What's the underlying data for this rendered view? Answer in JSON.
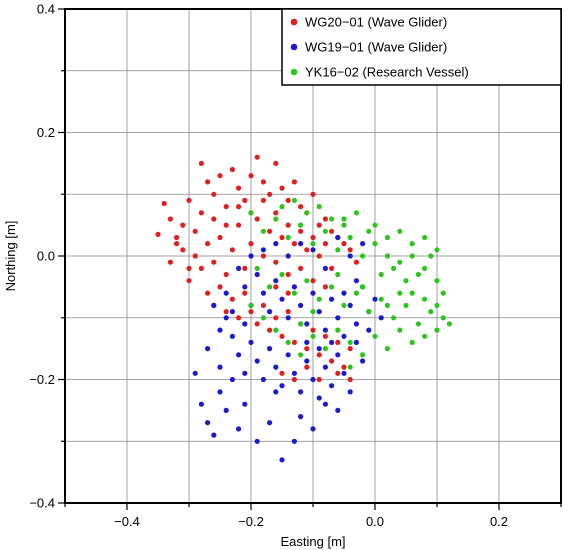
{
  "chart_data": {
    "type": "scatter",
    "title": "",
    "xlabel": "Easting [m]",
    "ylabel": "Northing [m]",
    "xlim": [
      -0.5,
      0.3
    ],
    "ylim": [
      -0.4,
      0.4
    ],
    "x_ticks": [
      -0.4,
      -0.2,
      0.0,
      0.2
    ],
    "y_ticks": [
      -0.4,
      -0.2,
      0.0,
      0.2,
      0.4
    ],
    "x_tick_labels": [
      "−0.4",
      "−0.2",
      "0.0",
      "0.2"
    ],
    "y_tick_labels": [
      "−0.4",
      "−0.2",
      "0.0",
      "0.2",
      "0.4"
    ],
    "grid": true,
    "legend_position": "top-right",
    "series": [
      {
        "name": "WG20−01 (Wave Glider)",
        "color": "#e0201f",
        "points": [
          [
            -0.34,
            0.085
          ],
          [
            -0.33,
            0.06
          ],
          [
            -0.35,
            0.035
          ],
          [
            -0.32,
            0.03
          ],
          [
            -0.3,
            0.09
          ],
          [
            -0.31,
            0.05
          ],
          [
            -0.28,
            0.15
          ],
          [
            -0.27,
            0.12
          ],
          [
            -0.26,
            0.1
          ],
          [
            -0.25,
            0.13
          ],
          [
            -0.24,
            0.08
          ],
          [
            -0.23,
            0.14
          ],
          [
            -0.22,
            0.11
          ],
          [
            -0.21,
            0.09
          ],
          [
            -0.2,
            0.13
          ],
          [
            -0.19,
            0.16
          ],
          [
            -0.18,
            0.12
          ],
          [
            -0.17,
            0.1
          ],
          [
            -0.16,
            0.15
          ],
          [
            -0.15,
            0.11
          ],
          [
            -0.14,
            0.09
          ],
          [
            -0.13,
            0.12
          ],
          [
            -0.12,
            0.08
          ],
          [
            -0.11,
            0.07
          ],
          [
            -0.1,
            0.1
          ],
          [
            -0.09,
            0.05
          ],
          [
            -0.08,
            0.06
          ],
          [
            -0.07,
            0.04
          ],
          [
            -0.06,
            0.03
          ],
          [
            -0.05,
            0.02
          ],
          [
            -0.04,
            0.01
          ],
          [
            -0.03,
            -0.01
          ],
          [
            -0.29,
            0.0
          ],
          [
            -0.28,
            -0.02
          ],
          [
            -0.3,
            -0.04
          ],
          [
            -0.27,
            0.02
          ],
          [
            -0.26,
            -0.01
          ],
          [
            -0.25,
            0.03
          ],
          [
            -0.24,
            -0.03
          ],
          [
            -0.23,
            0.01
          ],
          [
            -0.22,
            0.05
          ],
          [
            -0.21,
            -0.02
          ],
          [
            -0.2,
            0.02
          ],
          [
            -0.19,
            0.06
          ],
          [
            -0.18,
            0.0
          ],
          [
            -0.17,
            0.04
          ],
          [
            -0.16,
            -0.01
          ],
          [
            -0.15,
            0.03
          ],
          [
            -0.14,
            -0.03
          ],
          [
            -0.13,
            0.02
          ],
          [
            -0.12,
            -0.02
          ],
          [
            -0.11,
            0.01
          ],
          [
            -0.1,
            -0.04
          ],
          [
            -0.09,
            0.0
          ],
          [
            -0.08,
            -0.05
          ],
          [
            -0.07,
            -0.02
          ],
          [
            -0.27,
            -0.06
          ],
          [
            -0.26,
            -0.08
          ],
          [
            -0.25,
            -0.05
          ],
          [
            -0.24,
            -0.09
          ],
          [
            -0.23,
            -0.07
          ],
          [
            -0.22,
            -0.1
          ],
          [
            -0.21,
            -0.06
          ],
          [
            -0.2,
            -0.09
          ],
          [
            -0.19,
            -0.11
          ],
          [
            -0.18,
            -0.08
          ],
          [
            -0.17,
            -0.12
          ],
          [
            -0.16,
            -0.1
          ],
          [
            -0.15,
            -0.13
          ],
          [
            -0.14,
            -0.09
          ],
          [
            -0.13,
            -0.14
          ],
          [
            -0.12,
            -0.11
          ],
          [
            -0.11,
            -0.15
          ],
          [
            -0.1,
            -0.12
          ],
          [
            -0.09,
            -0.16
          ],
          [
            -0.08,
            -0.13
          ],
          [
            -0.07,
            -0.17
          ],
          [
            -0.06,
            -0.14
          ],
          [
            -0.05,
            -0.18
          ],
          [
            -0.04,
            -0.15
          ],
          [
            -0.15,
            -0.19
          ],
          [
            -0.13,
            -0.2
          ],
          [
            -0.11,
            -0.18
          ],
          [
            -0.09,
            -0.2
          ],
          [
            -0.06,
            -0.19
          ],
          [
            -0.04,
            -0.2
          ],
          [
            -0.16,
            -0.05
          ],
          [
            -0.14,
            -0.06
          ],
          [
            -0.28,
            0.07
          ],
          [
            -0.32,
            0.02
          ],
          [
            -0.33,
            -0.01
          ],
          [
            -0.31,
            0.01
          ],
          [
            -0.29,
            0.04
          ],
          [
            -0.3,
            -0.02
          ],
          [
            -0.26,
            0.06
          ],
          [
            -0.24,
            0.05
          ],
          [
            -0.22,
            0.08
          ],
          [
            -0.2,
            0.07
          ],
          [
            -0.18,
            0.09
          ],
          [
            -0.16,
            0.07
          ],
          [
            -0.14,
            0.05
          ],
          [
            -0.12,
            0.04
          ],
          [
            -0.1,
            0.03
          ],
          [
            -0.08,
            0.02
          ]
        ]
      },
      {
        "name": "WG19−01 (Wave Glider)",
        "color": "#1a1ad0",
        "points": [
          [
            -0.22,
            -0.02
          ],
          [
            -0.21,
            -0.05
          ],
          [
            -0.2,
            -0.08
          ],
          [
            -0.19,
            -0.03
          ],
          [
            -0.18,
            -0.06
          ],
          [
            -0.17,
            -0.09
          ],
          [
            -0.16,
            -0.04
          ],
          [
            -0.15,
            -0.07
          ],
          [
            -0.14,
            -0.1
          ],
          [
            -0.13,
            -0.05
          ],
          [
            -0.12,
            -0.08
          ],
          [
            -0.11,
            -0.11
          ],
          [
            -0.1,
            -0.06
          ],
          [
            -0.09,
            -0.09
          ],
          [
            -0.08,
            -0.12
          ],
          [
            -0.07,
            -0.07
          ],
          [
            -0.06,
            -0.1
          ],
          [
            -0.05,
            -0.13
          ],
          [
            -0.04,
            -0.08
          ],
          [
            -0.03,
            -0.11
          ],
          [
            -0.02,
            -0.05
          ],
          [
            -0.01,
            -0.09
          ],
          [
            0.0,
            -0.07
          ],
          [
            0.01,
            -0.1
          ],
          [
            -0.24,
            -0.1
          ],
          [
            -0.23,
            -0.13
          ],
          [
            -0.22,
            -0.16
          ],
          [
            -0.21,
            -0.19
          ],
          [
            -0.2,
            -0.14
          ],
          [
            -0.19,
            -0.17
          ],
          [
            -0.18,
            -0.2
          ],
          [
            -0.17,
            -0.15
          ],
          [
            -0.16,
            -0.18
          ],
          [
            -0.15,
            -0.21
          ],
          [
            -0.14,
            -0.16
          ],
          [
            -0.13,
            -0.19
          ],
          [
            -0.12,
            -0.22
          ],
          [
            -0.11,
            -0.17
          ],
          [
            -0.1,
            -0.2
          ],
          [
            -0.09,
            -0.23
          ],
          [
            -0.08,
            -0.18
          ],
          [
            -0.07,
            -0.21
          ],
          [
            -0.06,
            -0.16
          ],
          [
            -0.05,
            -0.19
          ],
          [
            -0.04,
            -0.22
          ],
          [
            -0.03,
            -0.14
          ],
          [
            -0.02,
            -0.17
          ],
          [
            -0.01,
            -0.12
          ],
          [
            -0.28,
            -0.24
          ],
          [
            -0.27,
            -0.27
          ],
          [
            -0.26,
            -0.29
          ],
          [
            -0.25,
            -0.22
          ],
          [
            -0.24,
            -0.25
          ],
          [
            -0.22,
            -0.28
          ],
          [
            -0.21,
            -0.24
          ],
          [
            -0.19,
            -0.3
          ],
          [
            -0.17,
            -0.27
          ],
          [
            -0.16,
            -0.22
          ],
          [
            -0.15,
            -0.33
          ],
          [
            -0.13,
            -0.3
          ],
          [
            -0.12,
            -0.26
          ],
          [
            -0.1,
            -0.28
          ],
          [
            -0.08,
            -0.24
          ],
          [
            -0.06,
            -0.25
          ],
          [
            -0.26,
            -0.08
          ],
          [
            -0.25,
            -0.12
          ],
          [
            -0.27,
            -0.15
          ],
          [
            -0.24,
            -0.06
          ],
          [
            -0.23,
            -0.09
          ],
          [
            -0.21,
            -0.11
          ],
          [
            -0.2,
            0.0
          ],
          [
            -0.18,
            0.01
          ],
          [
            -0.16,
            0.02
          ],
          [
            -0.14,
            0.0
          ],
          [
            -0.12,
            0.02
          ],
          [
            -0.1,
            0.01
          ],
          [
            -0.08,
            -0.02
          ],
          [
            -0.06,
            0.03
          ],
          [
            -0.04,
            0.0
          ],
          [
            -0.02,
            0.02
          ],
          [
            -0.29,
            -0.19
          ],
          [
            -0.25,
            -0.18
          ],
          [
            -0.23,
            -0.2
          ],
          [
            -0.11,
            -0.14
          ],
          [
            -0.09,
            -0.15
          ],
          [
            -0.07,
            -0.14
          ],
          [
            -0.05,
            -0.06
          ],
          [
            -0.03,
            -0.04
          ]
        ]
      },
      {
        "name": "YK16−02 (Research Vessel)",
        "color": "#2ec41e",
        "points": [
          [
            -0.2,
            0.07
          ],
          [
            -0.18,
            0.04
          ],
          [
            -0.16,
            0.06
          ],
          [
            -0.14,
            0.03
          ],
          [
            -0.12,
            0.05
          ],
          [
            -0.1,
            0.02
          ],
          [
            -0.08,
            0.04
          ],
          [
            -0.06,
            0.01
          ],
          [
            -0.04,
            0.03
          ],
          [
            -0.02,
            0.0
          ],
          [
            0.0,
            0.02
          ],
          [
            0.02,
            0.0
          ],
          [
            0.04,
            -0.01
          ],
          [
            0.06,
            0.0
          ],
          [
            0.08,
            -0.02
          ],
          [
            0.09,
            0.0
          ],
          [
            -0.19,
            -0.02
          ],
          [
            -0.17,
            -0.05
          ],
          [
            -0.15,
            -0.03
          ],
          [
            -0.13,
            -0.06
          ],
          [
            -0.11,
            -0.04
          ],
          [
            -0.09,
            -0.07
          ],
          [
            -0.07,
            -0.05
          ],
          [
            -0.05,
            -0.08
          ],
          [
            -0.03,
            -0.06
          ],
          [
            -0.01,
            -0.09
          ],
          [
            0.01,
            -0.07
          ],
          [
            0.03,
            -0.1
          ],
          [
            0.05,
            -0.08
          ],
          [
            0.07,
            -0.11
          ],
          [
            0.09,
            -0.09
          ],
          [
            0.11,
            -0.1
          ],
          [
            -0.16,
            -0.12
          ],
          [
            -0.14,
            -0.14
          ],
          [
            -0.12,
            -0.11
          ],
          [
            -0.1,
            -0.13
          ],
          [
            -0.08,
            -0.15
          ],
          [
            -0.06,
            -0.12
          ],
          [
            -0.04,
            -0.14
          ],
          [
            -0.02,
            -0.16
          ],
          [
            0.0,
            -0.13
          ],
          [
            0.02,
            -0.15
          ],
          [
            0.04,
            -0.12
          ],
          [
            0.06,
            -0.14
          ],
          [
            0.08,
            -0.13
          ],
          [
            0.1,
            -0.12
          ],
          [
            0.12,
            -0.11
          ],
          [
            0.05,
            -0.04
          ],
          [
            0.0,
            0.05
          ],
          [
            0.02,
            0.03
          ],
          [
            0.04,
            0.04
          ],
          [
            0.06,
            0.02
          ],
          [
            0.08,
            0.03
          ],
          [
            0.1,
            0.01
          ],
          [
            0.07,
            -0.03
          ],
          [
            0.03,
            -0.02
          ],
          [
            -0.05,
            0.06
          ],
          [
            -0.03,
            0.07
          ],
          [
            -0.01,
            0.04
          ],
          [
            0.01,
            -0.03
          ],
          [
            -0.02,
            -0.05
          ],
          [
            -0.06,
            -0.03
          ],
          [
            -0.1,
            -0.09
          ],
          [
            -0.12,
            -0.16
          ],
          [
            -0.15,
            0.08
          ],
          [
            -0.13,
            0.09
          ],
          [
            -0.11,
            0.07
          ],
          [
            -0.09,
            0.08
          ],
          [
            -0.07,
            0.06
          ],
          [
            -0.05,
            0.05
          ],
          [
            0.1,
            -0.08
          ],
          [
            0.11,
            -0.06
          ],
          [
            -0.2,
            -0.08
          ],
          [
            -0.18,
            -0.1
          ],
          [
            -0.04,
            -0.18
          ],
          [
            0.02,
            -0.08
          ],
          [
            0.04,
            -0.06
          ],
          [
            0.06,
            -0.06
          ],
          [
            0.08,
            -0.07
          ],
          [
            0.1,
            -0.04
          ]
        ]
      }
    ]
  }
}
